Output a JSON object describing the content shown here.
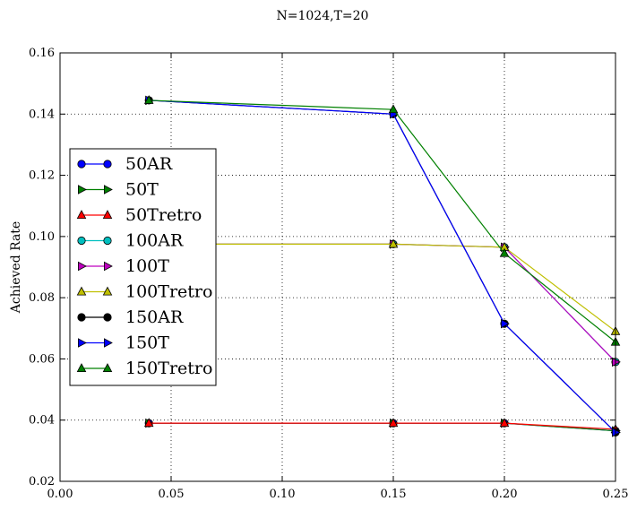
{
  "chart_data": {
    "type": "line",
    "title": "N=1024,T=20",
    "xlabel": "",
    "ylabel": "Achieved Rate",
    "xlim": [
      0.0,
      0.25
    ],
    "ylim": [
      0.02,
      0.16
    ],
    "xticks": [
      0.0,
      0.05,
      0.1,
      0.15,
      0.2,
      0.25
    ],
    "xtick_labels": [
      "0.00",
      "0.05",
      "0.10",
      "0.15",
      "0.20",
      "0.25"
    ],
    "yticks": [
      0.02,
      0.04,
      0.06,
      0.08,
      0.1,
      0.12,
      0.14,
      0.16
    ],
    "ytick_labels": [
      "0.02",
      "0.04",
      "0.06",
      "0.08",
      "0.10",
      "0.12",
      "0.14",
      "0.16"
    ],
    "grid": true,
    "legend_position": "left",
    "series": [
      {
        "name": "50AR",
        "color": "#0000ff",
        "marker": "circle",
        "x": [
          0.04,
          0.15,
          0.2,
          0.25
        ],
        "y": [
          0.039,
          0.039,
          0.039,
          0.0365
        ]
      },
      {
        "name": "50T",
        "color": "#008000",
        "marker": "triangle-right",
        "x": [
          0.04,
          0.15,
          0.2,
          0.25
        ],
        "y": [
          0.039,
          0.039,
          0.039,
          0.0365
        ]
      },
      {
        "name": "50Tretro",
        "color": "#ff0000",
        "marker": "triangle-up",
        "x": [
          0.04,
          0.15,
          0.2,
          0.25
        ],
        "y": [
          0.039,
          0.039,
          0.039,
          0.037
        ]
      },
      {
        "name": "100AR",
        "color": "#00bfbf",
        "marker": "circle",
        "x": [
          0.04,
          0.15,
          0.2,
          0.25
        ],
        "y": [
          0.0975,
          0.0975,
          0.0965,
          0.059
        ]
      },
      {
        "name": "100T",
        "color": "#bf00bf",
        "marker": "triangle-right",
        "x": [
          0.04,
          0.15,
          0.2,
          0.25
        ],
        "y": [
          0.0975,
          0.0975,
          0.0965,
          0.059
        ]
      },
      {
        "name": "100Tretro",
        "color": "#bfbf00",
        "marker": "triangle-up",
        "x": [
          0.04,
          0.15,
          0.2,
          0.25
        ],
        "y": [
          0.0975,
          0.0975,
          0.0965,
          0.069
        ]
      },
      {
        "name": "150AR",
        "color": "#000000",
        "marker": "circle",
        "x": [
          0.04,
          0.15,
          0.2,
          0.25
        ],
        "y": [
          0.1445,
          0.14,
          0.0715,
          0.036
        ]
      },
      {
        "name": "150T",
        "color": "#0000ff",
        "marker": "triangle-right",
        "x": [
          0.04,
          0.15,
          0.2,
          0.25
        ],
        "y": [
          0.1445,
          0.14,
          0.0715,
          0.036
        ]
      },
      {
        "name": "150Tretro",
        "color": "#008000",
        "marker": "triangle-up",
        "x": [
          0.04,
          0.15,
          0.2,
          0.25
        ],
        "y": [
          0.1445,
          0.1415,
          0.0945,
          0.0655
        ]
      }
    ]
  }
}
